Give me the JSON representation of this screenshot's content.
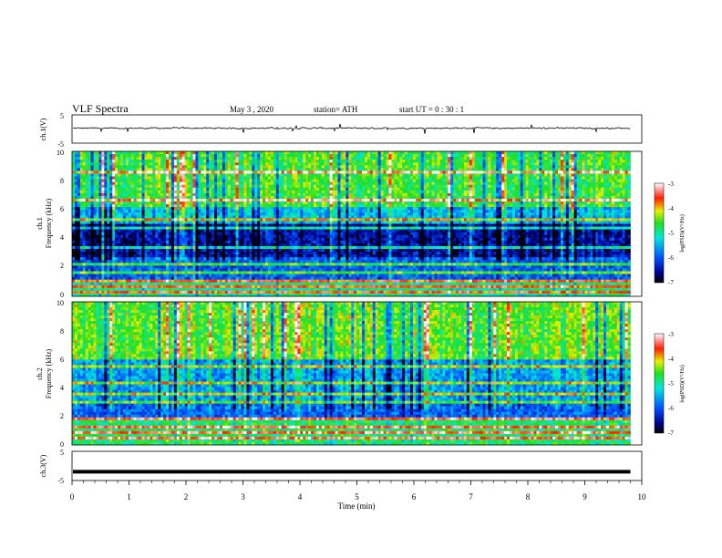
{
  "header": {
    "title": "VLF  Spectra",
    "date": "May 3  , 2020",
    "station": "station= ATH",
    "start": "start  UT  =    0  : 30 : 1"
  },
  "chart_data": [
    {
      "type": "line",
      "name": "ch1-waveform",
      "ylabel": "ch.1(V)",
      "yticks": [
        5,
        -5
      ],
      "ylim": [
        -5,
        5
      ],
      "xlim": [
        0,
        10
      ],
      "baseline": 0.3,
      "noise_amplitude": 0.4
    },
    {
      "type": "heatmap",
      "name": "ch1-spectrogram",
      "ylabel_top": "ch.1",
      "ylabel": "Frequency  (kHz)",
      "yticks": [
        "0",
        "2",
        "4",
        "6",
        "8",
        "10"
      ],
      "ylim": [
        0,
        10
      ],
      "xlim": [
        0,
        9.8
      ],
      "colorbar": {
        "label": "log(PSD)(V²/Hz)",
        "ticks": [
          "-3",
          "-4",
          "-5",
          "-6",
          "-7"
        ],
        "range": [
          -7,
          -3
        ]
      }
    },
    {
      "type": "heatmap",
      "name": "ch2-spectrogram",
      "ylabel_top": "ch.2",
      "ylabel": "Frequency  (kHz)",
      "yticks": [
        "0",
        "2",
        "4",
        "6",
        "8",
        "10"
      ],
      "ylim": [
        0,
        10
      ],
      "xlim": [
        0,
        9.8
      ],
      "colorbar": {
        "label": "log(PSD)(V²/Hz)",
        "ticks": [
          "-3",
          "-4",
          "-5",
          "-6",
          "-7"
        ],
        "range": [
          -7,
          -3
        ]
      }
    },
    {
      "type": "line",
      "name": "ch3-waveform",
      "ylabel": "ch.3(V)",
      "yticks": [
        5,
        -5
      ],
      "ylim": [
        -5,
        5
      ],
      "xlim": [
        0,
        10
      ],
      "baseline": -2.0
    }
  ],
  "xaxis": {
    "label": "Time  (min)",
    "ticks": [
      "0",
      "1",
      "2",
      "3",
      "4",
      "5",
      "6",
      "7",
      "8",
      "9",
      "10"
    ],
    "range": [
      0,
      10
    ]
  },
  "colors": {
    "axis": "#000000",
    "trace": "#000000"
  }
}
